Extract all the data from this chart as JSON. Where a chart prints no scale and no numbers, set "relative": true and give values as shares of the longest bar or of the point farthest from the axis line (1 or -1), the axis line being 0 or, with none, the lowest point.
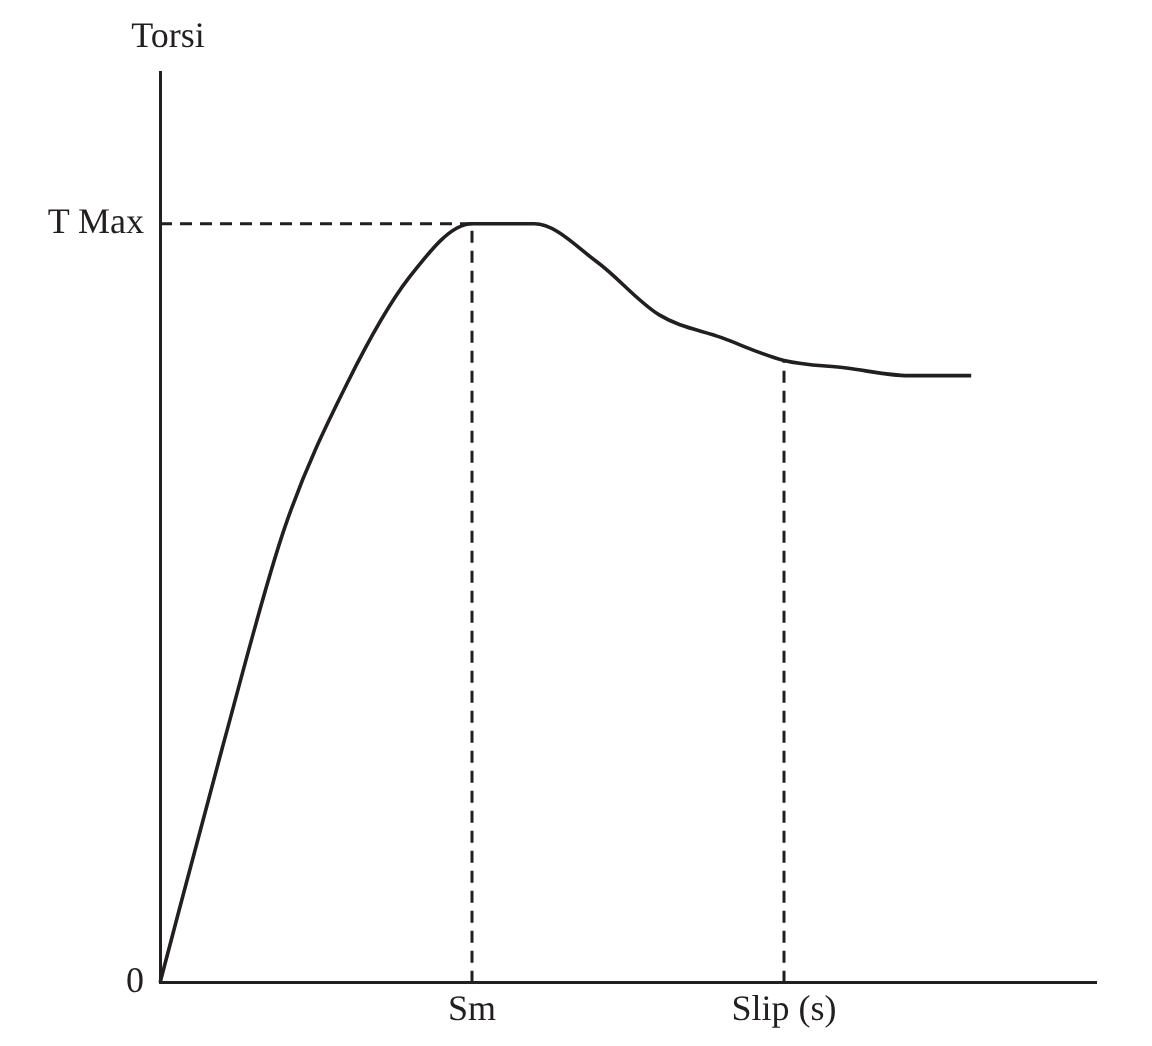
{
  "chart_data": {
    "type": "line",
    "relative": true,
    "ylabel": "Torsi",
    "marker": "none",
    "categories": [
      null,
      null,
      null,
      null,
      null,
      "Sm",
      null,
      null,
      null,
      null,
      "Slip (s)",
      null,
      null,
      null,
      null,
      null
    ],
    "annotations": [
      "T Max",
      "0"
    ],
    "series": [
      {
        "color": "#231f20",
        "line_style": "solid",
        "values": [
          0,
          0.31,
          0.6,
          0.79,
          0.93,
          1,
          1,
          0.95,
          0.88,
          0.85,
          0.82,
          0.81,
          0.8,
          0.8,
          null,
          null
        ]
      },
      {
        "color": "#231f20",
        "line_style": "dashed",
        "values": [
          1,
          1,
          1,
          1,
          1,
          1,
          null,
          null,
          null,
          null,
          null,
          null,
          null,
          null,
          null,
          null
        ]
      },
      {
        "color": "#231f20",
        "line_style": "dashed",
        "x": [
          "Sm",
          "Sm"
        ],
        "values": [
          0,
          1
        ]
      },
      {
        "color": "#231f20",
        "line_style": "dashed",
        "x": [
          "Slip (s)",
          "Slip (s)"
        ],
        "values": [
          0,
          0.82
        ]
      }
    ]
  }
}
